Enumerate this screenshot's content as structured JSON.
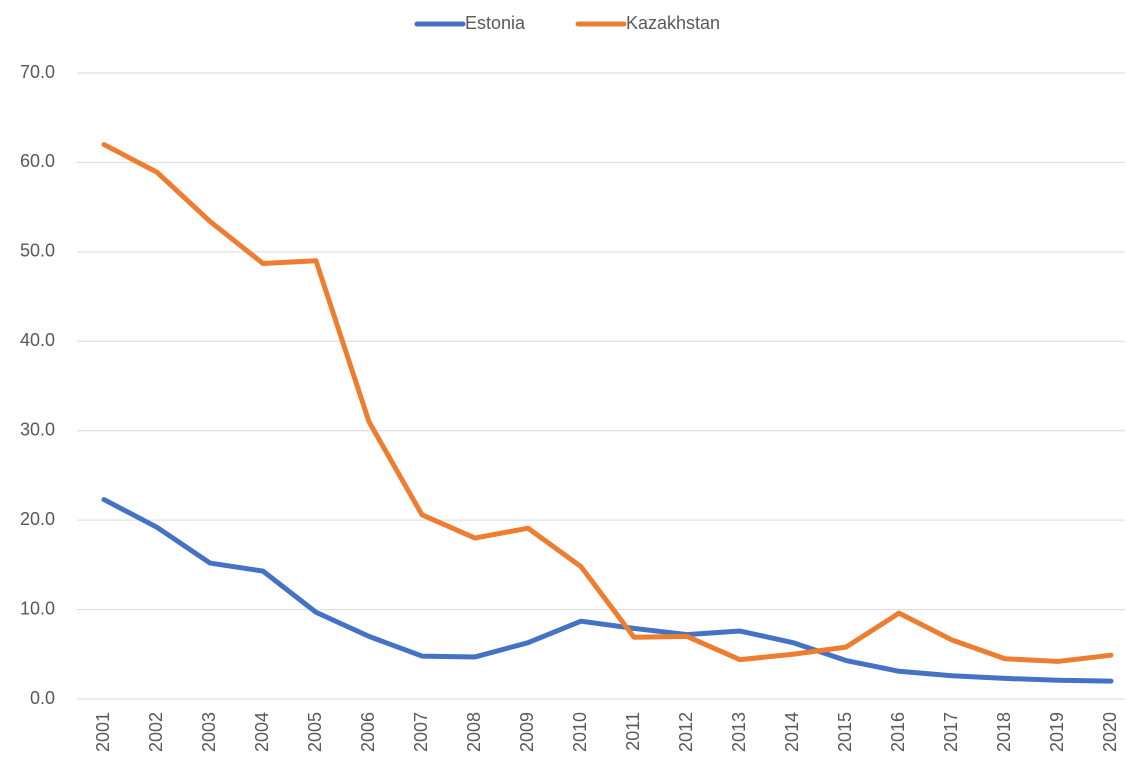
{
  "chart_data": {
    "type": "line",
    "categories": [
      "2001",
      "2002",
      "2003",
      "2004",
      "2005",
      "2006",
      "2007",
      "2008",
      "2009",
      "2010",
      "2011",
      "2012",
      "2013",
      "2014",
      "2015",
      "2016",
      "2017",
      "2018",
      "2019",
      "2020"
    ],
    "series": [
      {
        "name": "Estonia",
        "color": "#4472c4",
        "values": [
          22.3,
          19.2,
          15.2,
          14.3,
          9.7,
          7.0,
          4.8,
          4.7,
          6.3,
          8.7,
          7.9,
          7.2,
          7.6,
          6.3,
          4.3,
          3.1,
          2.6,
          2.3,
          2.1,
          2.0
        ]
      },
      {
        "name": "Kazakhstan",
        "color": "#ed7d31",
        "values": [
          62.0,
          58.9,
          53.4,
          48.7,
          49.0,
          31.0,
          20.6,
          18.0,
          19.1,
          14.8,
          6.9,
          7.0,
          4.4,
          5.0,
          5.8,
          9.6,
          6.6,
          4.5,
          4.2,
          4.9
        ]
      }
    ],
    "ylim": [
      0,
      70
    ],
    "yticks": [
      {
        "value": 0,
        "label": "0.0"
      },
      {
        "value": 10,
        "label": "10.0"
      },
      {
        "value": 20,
        "label": "20.0"
      },
      {
        "value": 30,
        "label": "30.0"
      },
      {
        "value": 40,
        "label": "40.0"
      },
      {
        "value": 50,
        "label": "50.0"
      },
      {
        "value": 60,
        "label": "60.0"
      },
      {
        "value": 70,
        "label": "70.0"
      }
    ],
    "grid": true,
    "legend": "top"
  }
}
